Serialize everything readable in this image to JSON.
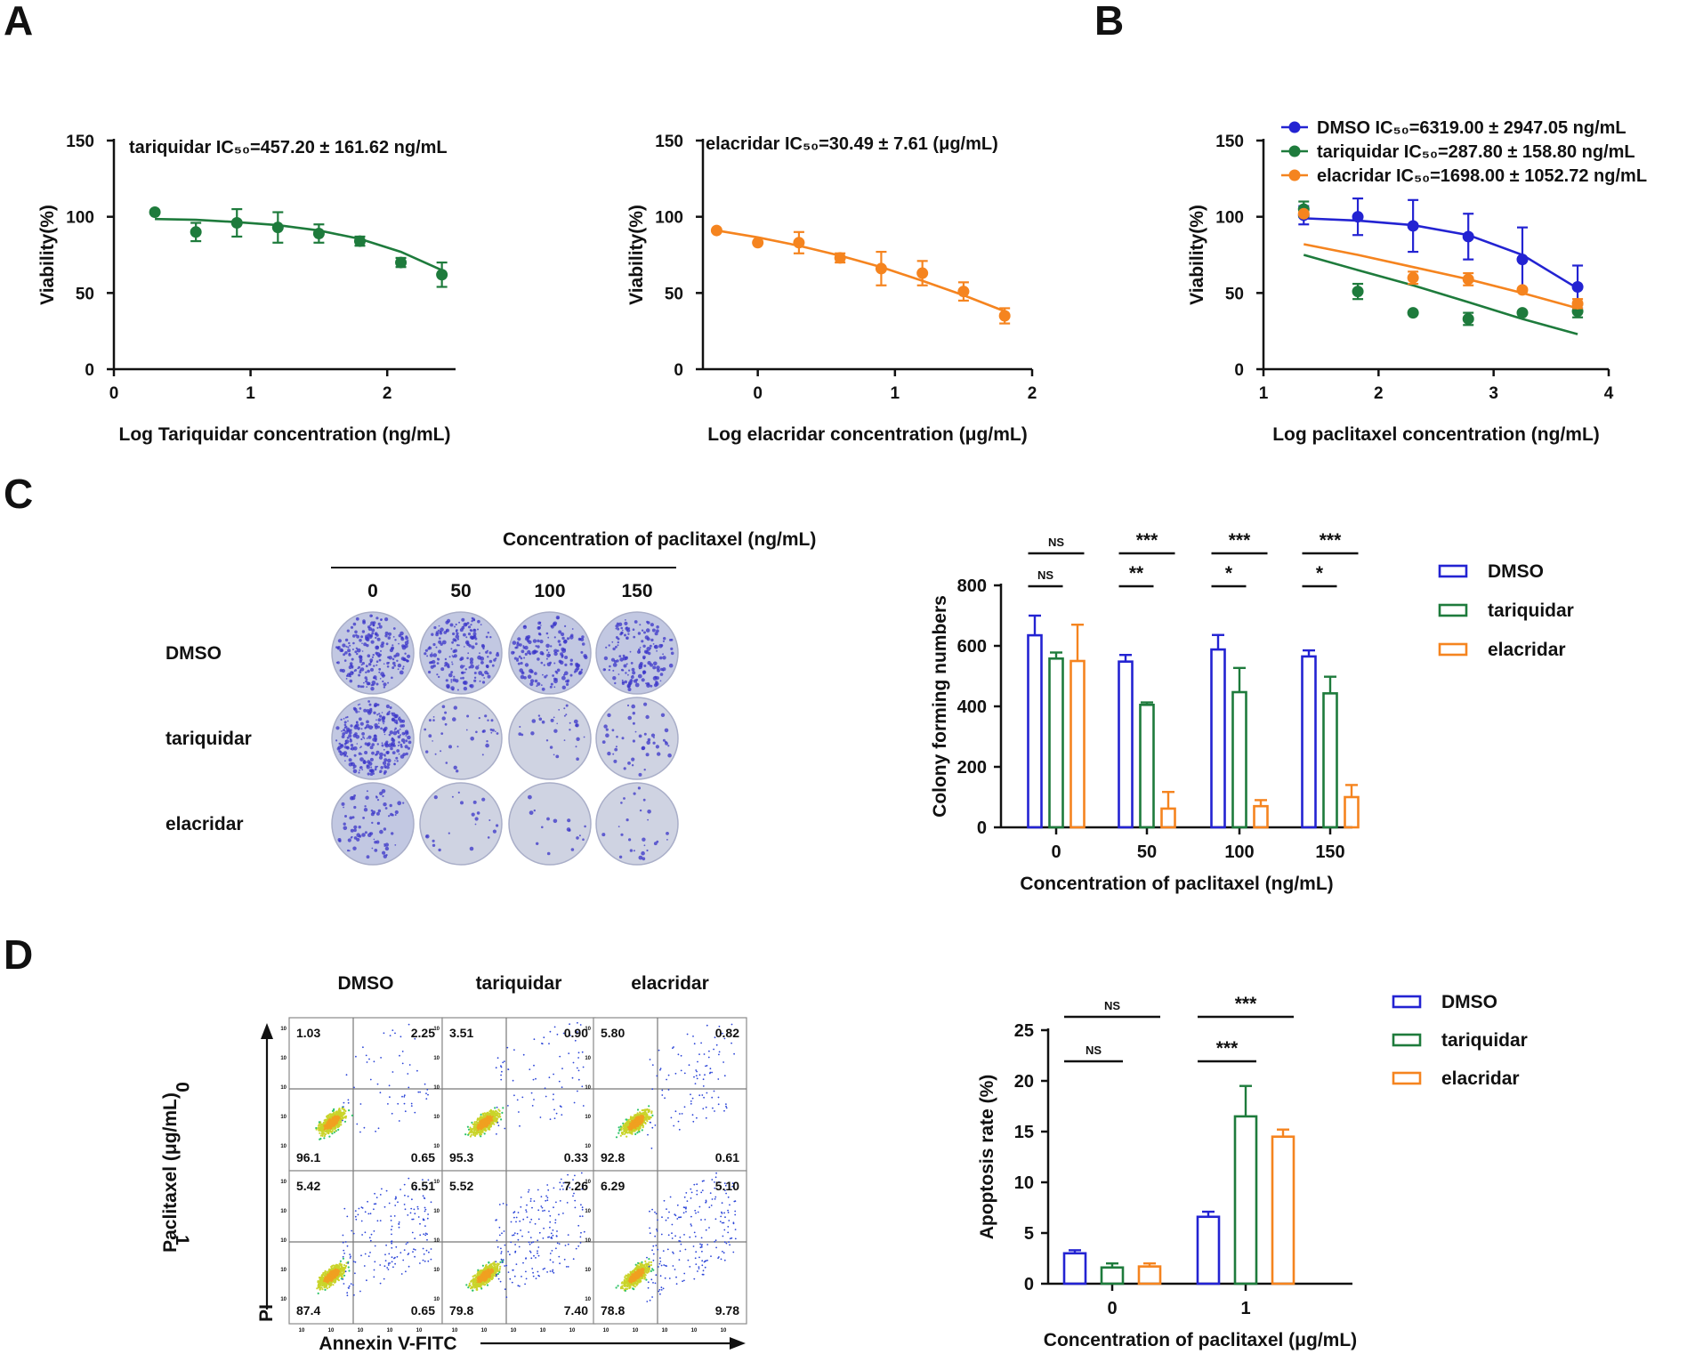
{
  "panels": {
    "A": "A",
    "B": "B",
    "C": "C",
    "D": "D"
  },
  "colors": {
    "dmso": "#2323d2",
    "tariquidar": "#1e7b3c",
    "elacridar": "#f5841f",
    "axis": "#111111"
  },
  "chart_data": [
    {
      "id": "A1",
      "type": "line",
      "annotation": "tariquidar IC₅₀=457.20 ± 161.62 ng/mL",
      "xlabel": "Log Tariquidar concentration (ng/mL)",
      "ylabel": "Viability(%)",
      "xlim": [
        0,
        2.5
      ],
      "ylim": [
        0,
        150
      ],
      "xticks": [
        0,
        1,
        2
      ],
      "yticks": [
        0,
        50,
        100,
        150
      ],
      "series": [
        {
          "name": "tariquidar",
          "color": "#1e7b3c",
          "x": [
            0.3,
            0.6,
            0.9,
            1.2,
            1.5,
            1.8,
            2.1,
            2.4
          ],
          "y": [
            103,
            90,
            96,
            93,
            89,
            84,
            70,
            62
          ],
          "err": [
            0,
            6,
            9,
            10,
            6,
            3,
            3,
            8
          ],
          "fit_x": [
            0.3,
            0.6,
            0.9,
            1.2,
            1.5,
            1.8,
            2.1,
            2.4
          ],
          "fit_y": [
            98.5,
            98,
            96.5,
            94.5,
            91,
            85.5,
            77,
            65
          ]
        }
      ]
    },
    {
      "id": "A2",
      "type": "line",
      "annotation": "elacridar IC₅₀=30.49 ± 7.61 (μg/mL)",
      "xlabel": "Log elacridar concentration (μg/mL)",
      "ylabel": "Viability(%)",
      "xlim": [
        -0.4,
        2
      ],
      "ylim": [
        0,
        150
      ],
      "xticks": [
        0,
        1,
        2
      ],
      "yticks": [
        0,
        50,
        100,
        150
      ],
      "series": [
        {
          "name": "elacridar",
          "color": "#f5841f",
          "x": [
            -0.3,
            0,
            0.3,
            0.6,
            0.9,
            1.2,
            1.5,
            1.8
          ],
          "y": [
            91,
            83,
            83,
            73,
            66,
            63,
            51,
            35
          ],
          "err": [
            0,
            0,
            7,
            3,
            11,
            8,
            6,
            5
          ],
          "fit_x": [
            -0.3,
            0,
            0.3,
            0.6,
            0.9,
            1.2,
            1.5,
            1.8
          ],
          "fit_y": [
            91,
            86.5,
            81,
            74.5,
            67,
            58,
            48.5,
            38
          ]
        }
      ]
    },
    {
      "id": "B",
      "type": "line",
      "xlabel": "Log paclitaxel concentration (ng/mL)",
      "ylabel": "Viability(%)",
      "xlim": [
        1,
        4
      ],
      "ylim": [
        0,
        150
      ],
      "xticks": [
        1,
        2,
        3,
        4
      ],
      "yticks": [
        0,
        50,
        100,
        150
      ],
      "legend": [
        "DMSO IC₅₀=6319.00 ±  2947.05 ng/mL",
        "tariquidar IC₅₀=287.80 ± 158.80 ng/mL",
        "elacridar IC₅₀=1698.00 ± 1052.72 ng/mL"
      ],
      "series": [
        {
          "name": "DMSO",
          "color": "#2323d2",
          "x": [
            1.35,
            1.82,
            2.3,
            2.78,
            3.25,
            3.73
          ],
          "y": [
            101,
            100,
            94,
            87,
            72,
            54
          ],
          "err": [
            6,
            12,
            17,
            15,
            21,
            14
          ],
          "fit_x": [
            1.35,
            1.82,
            2.3,
            2.78,
            3.25,
            3.73
          ],
          "fit_y": [
            99,
            97.5,
            94.5,
            88,
            75,
            53
          ]
        },
        {
          "name": "tariquidar",
          "color": "#1e7b3c",
          "x": [
            1.35,
            1.82,
            2.3,
            2.78,
            3.25,
            3.73
          ],
          "y": [
            105,
            51,
            37,
            33,
            37,
            38
          ],
          "err": [
            5,
            5,
            0,
            4,
            0,
            4
          ],
          "fit_x": [
            1.35,
            1.82,
            2.3,
            2.78,
            3.25,
            3.73
          ],
          "fit_y": [
            75,
            65,
            55,
            44,
            33,
            23
          ]
        },
        {
          "name": "elacridar",
          "color": "#f5841f",
          "x": [
            1.35,
            2.3,
            2.78,
            3.25,
            3.73
          ],
          "y": [
            102,
            60,
            59,
            52,
            43
          ],
          "err": [
            0,
            4,
            4,
            0,
            3
          ],
          "fit_x": [
            1.35,
            1.82,
            2.3,
            2.78,
            3.25,
            3.73
          ],
          "fit_y": [
            82,
            75,
            67,
            59,
            50,
            40
          ]
        }
      ]
    },
    {
      "id": "C",
      "type": "bar",
      "xlabel": "Concentration of paclitaxel (ng/mL)",
      "ylabel": "Colony forming numbers",
      "categories": [
        "0",
        "50",
        "100",
        "150"
      ],
      "ylim": [
        0,
        800
      ],
      "yticks": [
        0,
        200,
        400,
        600,
        800
      ],
      "series": [
        {
          "name": "DMSO",
          "color": "#2323d2",
          "values": [
            635,
            548,
            588,
            565
          ],
          "err": [
            65,
            22,
            48,
            20
          ]
        },
        {
          "name": "tariquidar",
          "color": "#1e7b3c",
          "values": [
            558,
            405,
            447,
            443
          ],
          "err": [
            20,
            8,
            80,
            55
          ]
        },
        {
          "name": "elacridar",
          "color": "#f5841f",
          "values": [
            550,
            62,
            70,
            100
          ],
          "err": [
            120,
            55,
            20,
            40
          ]
        }
      ],
      "sig_pair": [
        "NS",
        "**",
        "*",
        "*"
      ],
      "sig_all": [
        "NS",
        "***",
        "***",
        "***"
      ]
    },
    {
      "id": "D",
      "type": "bar",
      "xlabel": "Concentration of paclitaxel (μg/mL)",
      "ylabel": "Apoptosis rate (%)",
      "categories": [
        "0",
        "1"
      ],
      "ylim": [
        0,
        25
      ],
      "yticks": [
        0,
        5,
        10,
        15,
        20,
        25
      ],
      "series": [
        {
          "name": "DMSO",
          "color": "#2323d2",
          "values": [
            3.0,
            6.6
          ],
          "err": [
            0.3,
            0.5
          ]
        },
        {
          "name": "tariquidar",
          "color": "#1e7b3c",
          "values": [
            1.6,
            16.5
          ],
          "err": [
            0.4,
            3.0
          ]
        },
        {
          "name": "elacridar",
          "color": "#f5841f",
          "values": [
            1.7,
            14.5
          ],
          "err": [
            0.3,
            0.7
          ]
        }
      ],
      "sig_pair": [
        "NS",
        "***"
      ],
      "sig_all": [
        "NS",
        "***"
      ]
    }
  ],
  "colony": {
    "header": "Concentration of  paclitaxel (ng/mL)",
    "concs": [
      "0",
      "50",
      "100",
      "150"
    ],
    "rows": [
      "DMSO",
      "tariquidar",
      "elacridar"
    ],
    "density": [
      [
        0.8,
        0.7,
        0.6,
        0.6
      ],
      [
        1.0,
        0.15,
        0.12,
        0.18
      ],
      [
        0.3,
        0.08,
        0.06,
        0.1
      ]
    ]
  },
  "flow": {
    "cols": [
      "DMSO",
      "tariquidar",
      "elacridar"
    ],
    "rows": [
      "0",
      "1"
    ],
    "ylabel": "Paclitaxel (μg/mL)",
    "pi_label": "PI",
    "annexin_label": "Annexin V-FITC",
    "quadrants": [
      [
        [
          "1.03",
          "2.25",
          "96.1",
          "0.65"
        ],
        [
          "3.51",
          "0.90",
          "95.3",
          "0.33"
        ],
        [
          "5.80",
          "0.82",
          "92.8",
          "0.61"
        ]
      ],
      [
        [
          "5.42",
          "6.51",
          "87.4",
          "0.65"
        ],
        [
          "5.52",
          "7.26",
          "79.8",
          "7.40"
        ],
        [
          "6.29",
          "5.10",
          "78.8",
          "9.78"
        ]
      ]
    ]
  }
}
